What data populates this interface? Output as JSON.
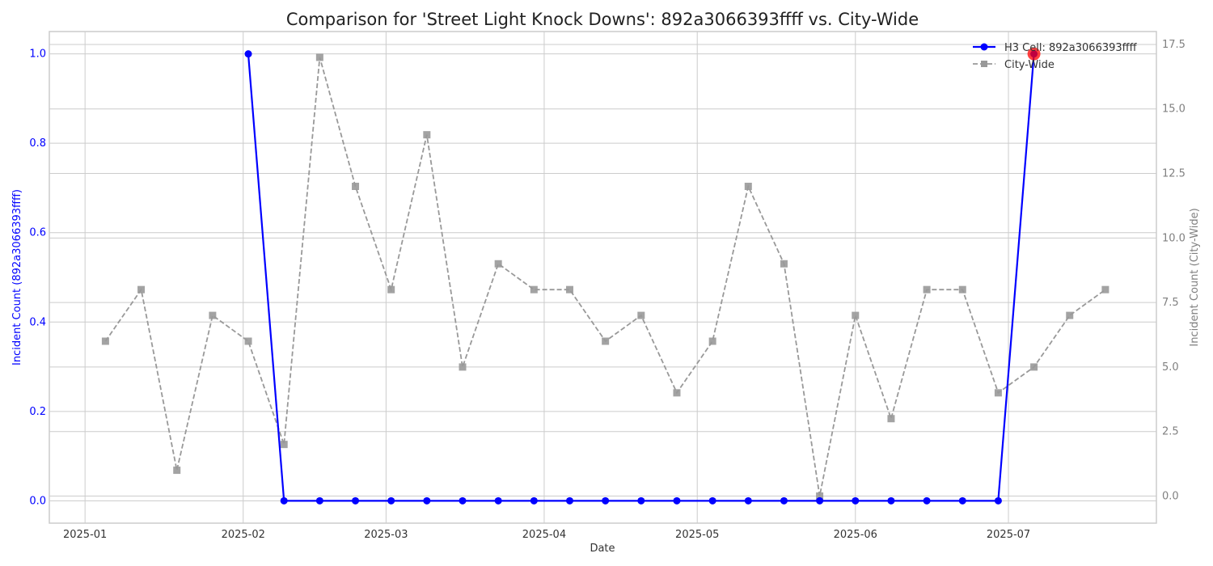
{
  "colors": {
    "h3": "#0000ff",
    "city": "#999999",
    "highlight": "#ff0000",
    "grid": "#cccccc",
    "left_axis_text": "#0000ff",
    "right_axis_text": "#808080"
  },
  "chart_data": {
    "type": "line",
    "title": "Comparison for 'Street Light Knock Downs': 892a3066393ffff vs. City-Wide",
    "xlabel": "Date",
    "ylabel_left": "Incident Count (892a3066393ffff)",
    "ylabel_right": "Incident Count (City-Wide)",
    "x_tick_labels": [
      "2025-01",
      "2025-02",
      "2025-03",
      "2025-04",
      "2025-05",
      "2025-06",
      "2025-07"
    ],
    "y_left_ticks": [
      "0.0",
      "0.2",
      "0.4",
      "0.6",
      "0.8",
      "1.0"
    ],
    "y_right_ticks": [
      "0.0",
      "2.5",
      "5.0",
      "7.5",
      "10.0",
      "12.5",
      "15.0",
      "17.5"
    ],
    "ylim_left": [
      -0.05,
      1.05
    ],
    "ylim_right": [
      -1.05,
      18.0
    ],
    "grid": true,
    "legend_position": "top-right",
    "series": [
      {
        "name": "H3 Cell: 892a3066393ffff",
        "axis": "left",
        "style": "solid-circle",
        "x": [
          "2025-02-02",
          "2025-02-09",
          "2025-02-16",
          "2025-02-23",
          "2025-03-02",
          "2025-03-09",
          "2025-03-16",
          "2025-03-23",
          "2025-03-30",
          "2025-04-06",
          "2025-04-13",
          "2025-04-20",
          "2025-04-27",
          "2025-05-04",
          "2025-05-11",
          "2025-05-18",
          "2025-05-25",
          "2025-06-01",
          "2025-06-08",
          "2025-06-15",
          "2025-06-22",
          "2025-06-29",
          "2025-07-06"
        ],
        "values": [
          1,
          0,
          0,
          0,
          0,
          0,
          0,
          0,
          0,
          0,
          0,
          0,
          0,
          0,
          0,
          0,
          0,
          0,
          0,
          0,
          0,
          0,
          1
        ]
      },
      {
        "name": "City-Wide",
        "axis": "right",
        "style": "dashed-square",
        "x": [
          "2025-01-05",
          "2025-01-12",
          "2025-01-19",
          "2025-01-26",
          "2025-02-02",
          "2025-02-09",
          "2025-02-16",
          "2025-02-23",
          "2025-03-02",
          "2025-03-09",
          "2025-03-16",
          "2025-03-23",
          "2025-03-30",
          "2025-04-06",
          "2025-04-13",
          "2025-04-20",
          "2025-04-27",
          "2025-05-04",
          "2025-05-11",
          "2025-05-18",
          "2025-05-25",
          "2025-06-01",
          "2025-06-08",
          "2025-06-15",
          "2025-06-22",
          "2025-06-29",
          "2025-07-06",
          "2025-07-13",
          "2025-07-20"
        ],
        "values": [
          6,
          8,
          1,
          7,
          6,
          2,
          17,
          12,
          8,
          14,
          5,
          9,
          8,
          8,
          6,
          7,
          4,
          6,
          12,
          9,
          0,
          7,
          3,
          8,
          8,
          4,
          5,
          7,
          8
        ]
      }
    ],
    "highlight_point": {
      "series": "H3 Cell: 892a3066393ffff",
      "x": "2025-07-06",
      "value": 1
    }
  }
}
